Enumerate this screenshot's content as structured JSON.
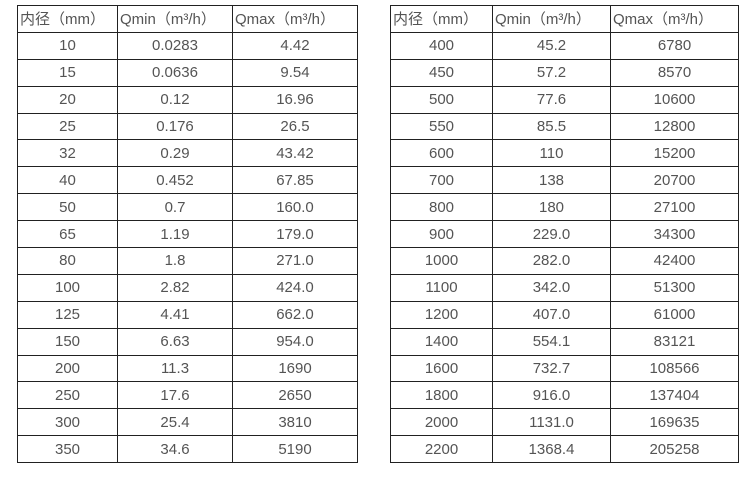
{
  "colors": {
    "background": "#ffffff",
    "border": "#212121",
    "text": "#545454"
  },
  "tables": [
    {
      "name": "flow-rate-table-small-diameters",
      "headers": [
        "内径（mm）",
        "Qmin（m³/h）",
        "Qmax（m³/h）"
      ],
      "rows": [
        [
          "10",
          "0.0283",
          "4.42"
        ],
        [
          "15",
          "0.0636",
          "9.54"
        ],
        [
          "20",
          "0.12",
          "16.96"
        ],
        [
          "25",
          "0.176",
          "26.5"
        ],
        [
          "32",
          "0.29",
          "43.42"
        ],
        [
          "40",
          "0.452",
          "67.85"
        ],
        [
          "50",
          "0.7",
          "160.0"
        ],
        [
          "65",
          "1.19",
          "179.0"
        ],
        [
          "80",
          "1.8",
          "271.0"
        ],
        [
          "100",
          "2.82",
          "424.0"
        ],
        [
          "125",
          "4.41",
          "662.0"
        ],
        [
          "150",
          "6.63",
          "954.0"
        ],
        [
          "200",
          "11.3",
          "1690"
        ],
        [
          "250",
          "17.6",
          "2650"
        ],
        [
          "300",
          "25.4",
          "3810"
        ],
        [
          "350",
          "34.6",
          "5190"
        ]
      ]
    },
    {
      "name": "flow-rate-table-large-diameters",
      "headers": [
        "内径（mm）",
        "Qmin（m³/h）",
        "Qmax（m³/h）"
      ],
      "rows": [
        [
          "400",
          "45.2",
          "6780"
        ],
        [
          "450",
          "57.2",
          "8570"
        ],
        [
          "500",
          "77.6",
          "10600"
        ],
        [
          "550",
          "85.5",
          "12800"
        ],
        [
          "600",
          "110",
          "15200"
        ],
        [
          "700",
          "138",
          "20700"
        ],
        [
          "800",
          "180",
          "27100"
        ],
        [
          "900",
          "229.0",
          "34300"
        ],
        [
          "1000",
          "282.0",
          "42400"
        ],
        [
          "1100",
          "342.0",
          "51300"
        ],
        [
          "1200",
          "407.0",
          "61000"
        ],
        [
          "1400",
          "554.1",
          "83121"
        ],
        [
          "1600",
          "732.7",
          "108566"
        ],
        [
          "1800",
          "916.0",
          "137404"
        ],
        [
          "2000",
          "1131.0",
          "169635"
        ],
        [
          "2200",
          "1368.4",
          "205258"
        ]
      ]
    }
  ]
}
